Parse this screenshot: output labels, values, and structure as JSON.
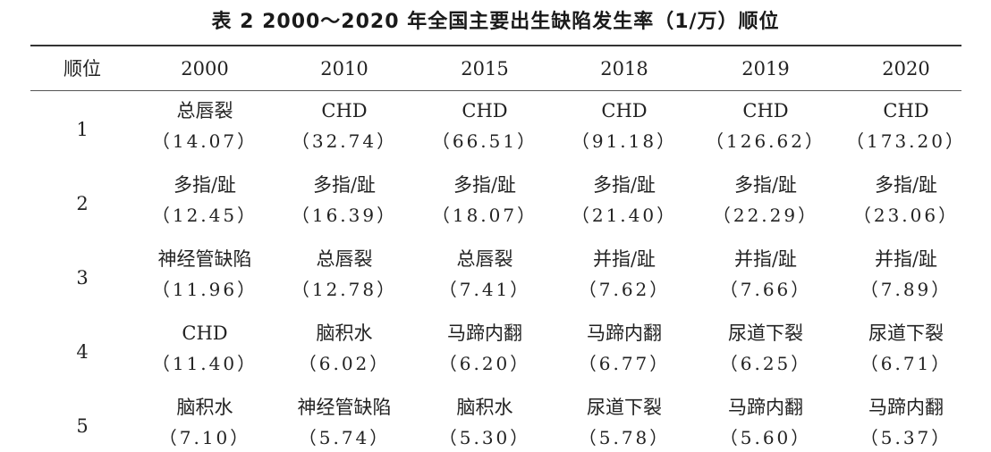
{
  "title": "表 2   2000～2020 年全国主要出生缺陷发生率（1/万）顺位",
  "header": {
    "rank_label": "顺位",
    "years": [
      "2000",
      "2010",
      "2015",
      "2018",
      "2019",
      "2020"
    ]
  },
  "rows": [
    {
      "rank": "1",
      "cells": [
        {
          "name": "总唇裂",
          "rate": "（14.07）"
        },
        {
          "name": "CHD",
          "rate": "（32.74）"
        },
        {
          "name": "CHD",
          "rate": "（66.51）"
        },
        {
          "name": "CHD",
          "rate": "（91.18）"
        },
        {
          "name": "CHD",
          "rate": "（126.62）"
        },
        {
          "name": "CHD",
          "rate": "（173.20）"
        }
      ]
    },
    {
      "rank": "2",
      "cells": [
        {
          "name": "多指/趾",
          "rate": "（12.45）"
        },
        {
          "name": "多指/趾",
          "rate": "（16.39）"
        },
        {
          "name": "多指/趾",
          "rate": "（18.07）"
        },
        {
          "name": "多指/趾",
          "rate": "（21.40）"
        },
        {
          "name": "多指/趾",
          "rate": "（22.29）"
        },
        {
          "name": "多指/趾",
          "rate": "（23.06）"
        }
      ]
    },
    {
      "rank": "3",
      "cells": [
        {
          "name": "神经管缺陷",
          "rate": "（11.96）"
        },
        {
          "name": "总唇裂",
          "rate": "（12.78）"
        },
        {
          "name": "总唇裂",
          "rate": "（7.41）"
        },
        {
          "name": "并指/趾",
          "rate": "（7.62）"
        },
        {
          "name": "并指/趾",
          "rate": "（7.66）"
        },
        {
          "name": "并指/趾",
          "rate": "（7.89）"
        }
      ]
    },
    {
      "rank": "4",
      "cells": [
        {
          "name": "CHD",
          "rate": "（11.40）"
        },
        {
          "name": "脑积水",
          "rate": "（6.02）"
        },
        {
          "name": "马蹄内翻",
          "rate": "（6.20）"
        },
        {
          "name": "马蹄内翻",
          "rate": "（6.77）"
        },
        {
          "name": "尿道下裂",
          "rate": "（6.25）"
        },
        {
          "name": "尿道下裂",
          "rate": "（6.71）"
        }
      ]
    },
    {
      "rank": "5",
      "cells": [
        {
          "name": "脑积水",
          "rate": "（7.10）"
        },
        {
          "name": "神经管缺陷",
          "rate": "（5.74）"
        },
        {
          "name": "脑积水",
          "rate": "（5.30）"
        },
        {
          "name": "尿道下裂",
          "rate": "（5.78）"
        },
        {
          "name": "马蹄内翻",
          "rate": "（5.60）"
        },
        {
          "name": "马蹄内翻",
          "rate": "（5.37）"
        }
      ]
    }
  ]
}
